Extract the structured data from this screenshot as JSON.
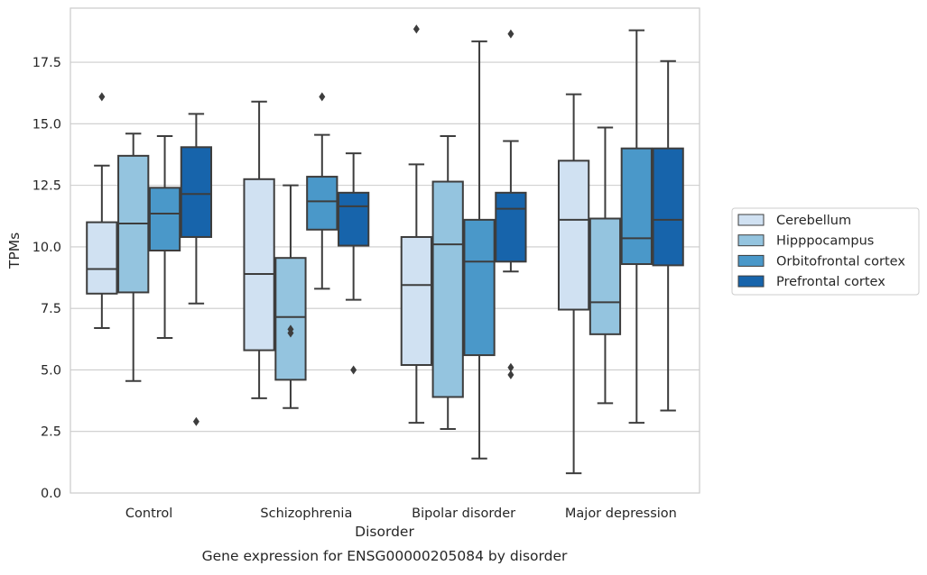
{
  "chart_data": {
    "type": "boxplot",
    "xlabel": "Disorder",
    "ylabel": "TPMs",
    "caption": "Gene expression for ENSG00000205084 by disorder",
    "ylim": [
      0,
      19.7
    ],
    "yticks": [
      0.0,
      2.5,
      5.0,
      7.5,
      10.0,
      12.5,
      15.0,
      17.5
    ],
    "ytick_labels": [
      "0.0",
      "2.5",
      "5.0",
      "7.5",
      "10.0",
      "12.5",
      "15.0",
      "17.5"
    ],
    "grid": "horizontal",
    "legend_position": "right",
    "categories": [
      "Control",
      "Schizophrenia",
      "Bipolar disorder",
      "Major depression"
    ],
    "series": [
      {
        "name": "Cerebellum",
        "color": "#d0e1f2",
        "boxes": [
          {
            "whislo": 6.7,
            "q1": 8.1,
            "med": 9.1,
            "q3": 11.0,
            "whishi": 13.3,
            "fliers": [
              16.1
            ]
          },
          {
            "whislo": 3.85,
            "q1": 5.8,
            "med": 8.9,
            "q3": 12.75,
            "whishi": 15.9,
            "fliers": []
          },
          {
            "whislo": 2.85,
            "q1": 5.2,
            "med": 8.45,
            "q3": 10.4,
            "whishi": 13.35,
            "fliers": [
              18.85
            ]
          },
          {
            "whislo": 0.8,
            "q1": 7.45,
            "med": 11.1,
            "q3": 13.5,
            "whishi": 16.2,
            "fliers": []
          }
        ]
      },
      {
        "name": "Hipppocampus",
        "color": "#94c4df",
        "boxes": [
          {
            "whislo": 4.55,
            "q1": 8.15,
            "med": 10.95,
            "q3": 13.7,
            "whishi": 14.6,
            "fliers": []
          },
          {
            "whislo": 3.45,
            "q1": 4.6,
            "med": 7.15,
            "q3": 9.55,
            "whishi": 12.5,
            "fliers": [
              6.5,
              6.65
            ]
          },
          {
            "whislo": 2.6,
            "q1": 3.9,
            "med": 10.1,
            "q3": 12.65,
            "whishi": 14.5,
            "fliers": []
          },
          {
            "whislo": 3.65,
            "q1": 6.45,
            "med": 7.75,
            "q3": 11.15,
            "whishi": 14.85,
            "fliers": []
          }
        ]
      },
      {
        "name": "Orbitofrontal cortex",
        "color": "#4a98c9",
        "boxes": [
          {
            "whislo": 6.3,
            "q1": 9.85,
            "med": 11.35,
            "q3": 12.4,
            "whishi": 14.5,
            "fliers": []
          },
          {
            "whislo": 8.3,
            "q1": 10.7,
            "med": 11.85,
            "q3": 12.85,
            "whishi": 14.55,
            "fliers": [
              16.1
            ]
          },
          {
            "whislo": 1.4,
            "q1": 5.6,
            "med": 9.4,
            "q3": 11.1,
            "whishi": 18.35,
            "fliers": []
          },
          {
            "whislo": 2.85,
            "q1": 9.3,
            "med": 10.35,
            "q3": 14.0,
            "whishi": 18.8,
            "fliers": []
          }
        ]
      },
      {
        "name": "Prefrontal cortex",
        "color": "#1764ab",
        "boxes": [
          {
            "whislo": 7.7,
            "q1": 10.4,
            "med": 12.15,
            "q3": 14.05,
            "whishi": 15.4,
            "fliers": [
              2.9
            ]
          },
          {
            "whislo": 7.85,
            "q1": 10.05,
            "med": 11.65,
            "q3": 12.2,
            "whishi": 13.8,
            "fliers": [
              5.0
            ]
          },
          {
            "whislo": 9.0,
            "q1": 9.4,
            "med": 11.55,
            "q3": 12.2,
            "whishi": 14.3,
            "fliers": [
              4.8,
              5.1,
              18.65
            ]
          },
          {
            "whislo": 3.35,
            "q1": 9.25,
            "med": 11.1,
            "q3": 14.0,
            "whishi": 17.55,
            "fliers": []
          }
        ]
      }
    ]
  }
}
